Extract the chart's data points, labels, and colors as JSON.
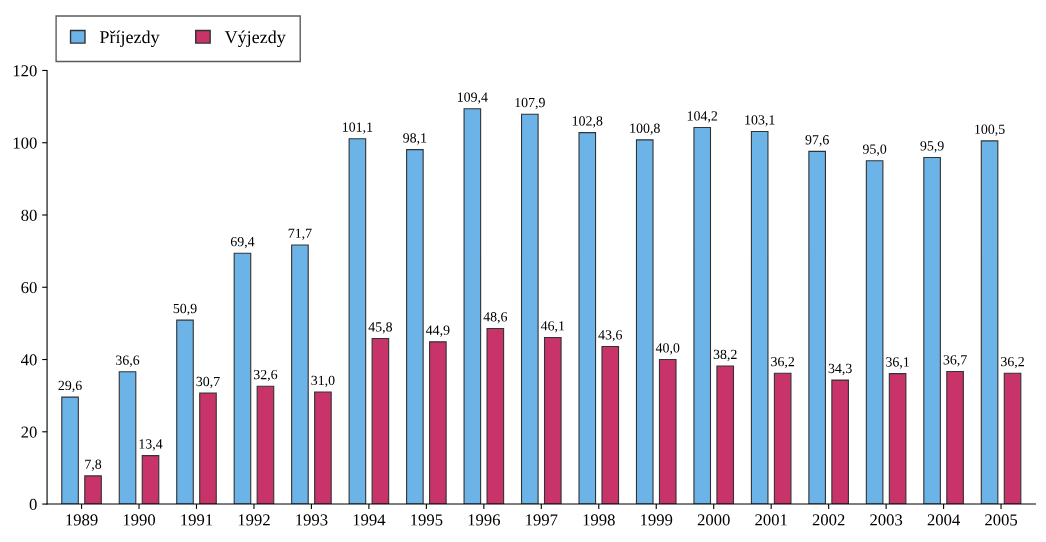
{
  "chart_data": {
    "type": "bar",
    "categories": [
      "1989",
      "1990",
      "1991",
      "1992",
      "1993",
      "1994",
      "1995",
      "1996",
      "1997",
      "1998",
      "1999",
      "2000",
      "2001",
      "2002",
      "2003",
      "2004",
      "2005"
    ],
    "series": [
      {
        "name": "Příjezdy",
        "color": "#6cb4e8",
        "values": [
          29.6,
          36.6,
          50.9,
          69.4,
          71.7,
          101.1,
          98.1,
          109.4,
          107.9,
          102.8,
          100.8,
          104.2,
          103.1,
          97.6,
          95.0,
          95.9,
          100.5
        ],
        "value_labels": [
          "29,6",
          "36,6",
          "50,9",
          "69,4",
          "71,7",
          "101,1",
          "98,1",
          "109,4",
          "107,9",
          "102,8",
          "100,8",
          "104,2",
          "103,1",
          "97,6",
          "95,0",
          "95,9",
          "100,5"
        ]
      },
      {
        "name": "Výjezdy",
        "color": "#c8336a",
        "values": [
          7.8,
          13.4,
          30.7,
          32.6,
          31.0,
          45.8,
          44.9,
          48.6,
          46.1,
          43.6,
          40.0,
          38.2,
          36.2,
          34.3,
          36.1,
          36.7,
          36.2
        ],
        "value_labels": [
          "7,8",
          "13,4",
          "30,7",
          "32,6",
          "31,0",
          "45,8",
          "44,9",
          "48,6",
          "46,1",
          "43,6",
          "40,0",
          "38,2",
          "36,2",
          "34,3",
          "36,1",
          "36,7",
          "36,2"
        ]
      }
    ],
    "ylim": [
      0,
      120
    ],
    "yticks": [
      0,
      20,
      40,
      60,
      80,
      100,
      120
    ],
    "grid": false,
    "legend": "top left"
  }
}
